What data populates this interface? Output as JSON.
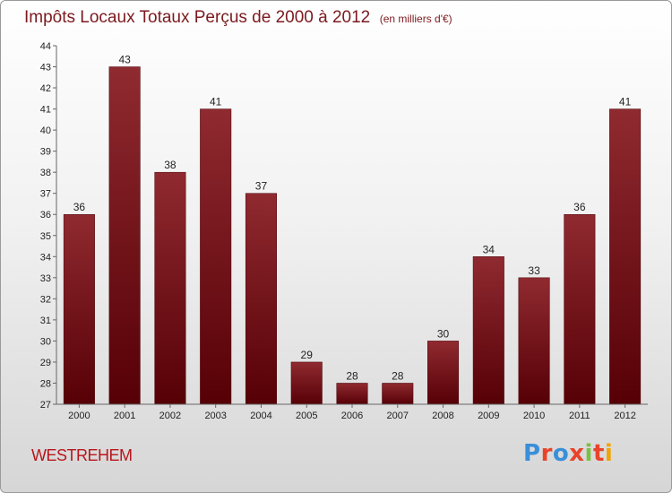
{
  "chart_data": {
    "type": "bar",
    "title": "Impôts Locaux Totaux Perçus de 2000 à 2012",
    "unit": "(en milliers d'€)",
    "categories": [
      "2000",
      "2001",
      "2002",
      "2003",
      "2004",
      "2005",
      "2006",
      "2007",
      "2008",
      "2009",
      "2010",
      "2011",
      "2012"
    ],
    "values": [
      36,
      43,
      38,
      41,
      37,
      29,
      28,
      28,
      30,
      34,
      33,
      36,
      41
    ],
    "ylim": [
      27,
      44
    ],
    "yticks": [
      27,
      28,
      29,
      30,
      31,
      32,
      33,
      34,
      35,
      36,
      37,
      38,
      39,
      40,
      41,
      42,
      43,
      44
    ],
    "xlabel": "",
    "ylabel": "",
    "grid": false,
    "bar_color": "#6b0f14"
  },
  "footer": {
    "town": "WESTREHEM",
    "logo": "Proxiti",
    "logo_colors": [
      "#3a8fd9",
      "#e8442a",
      "#3a8fd9",
      "#e8442a",
      "#7bc043",
      "#e8442a",
      "#f2a400"
    ]
  }
}
